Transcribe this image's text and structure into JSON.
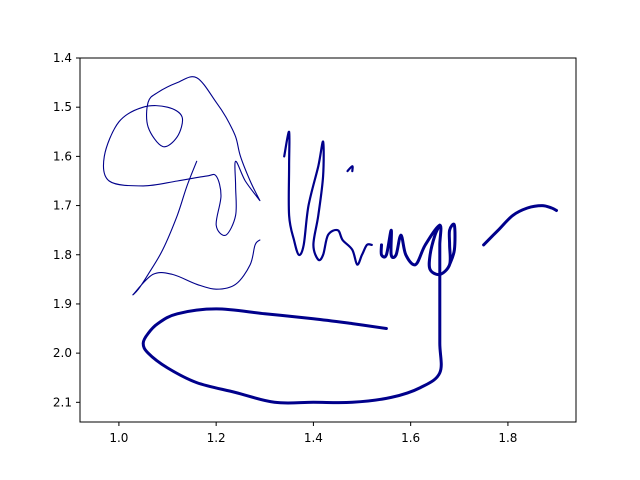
{
  "chart_data": {
    "type": "line",
    "title": "",
    "xlabel": "",
    "ylabel": "",
    "xlim": [
      0.92,
      1.94
    ],
    "ylim": [
      2.14,
      1.4
    ],
    "y_inverted": true,
    "grid": false,
    "xticks": [
      "1.0",
      "1.2",
      "1.4",
      "1.6",
      "1.8"
    ],
    "xtick_values": [
      1.0,
      1.2,
      1.4,
      1.6,
      1.8
    ],
    "yticks": [
      "1.4",
      "1.5",
      "1.6",
      "1.7",
      "1.8",
      "1.9",
      "2.0",
      "2.1"
    ],
    "ytick_values": [
      1.4,
      1.5,
      1.6,
      1.7,
      1.8,
      1.9,
      2.0,
      2.1
    ],
    "color": "#00008b",
    "series": [
      {
        "stroke": "thin",
        "points": [
          [
            1.29,
            1.69
          ],
          [
            1.27,
            1.65
          ],
          [
            1.25,
            1.6
          ],
          [
            1.24,
            1.56
          ],
          [
            1.22,
            1.52
          ],
          [
            1.2,
            1.49
          ],
          [
            1.16,
            1.44
          ],
          [
            1.12,
            1.45
          ],
          [
            1.08,
            1.47
          ],
          [
            1.06,
            1.49
          ],
          [
            1.06,
            1.54
          ],
          [
            1.09,
            1.58
          ],
          [
            1.12,
            1.56
          ],
          [
            1.13,
            1.52
          ],
          [
            1.1,
            1.5
          ],
          [
            1.05,
            1.5
          ],
          [
            1.0,
            1.53
          ],
          [
            0.97,
            1.6
          ],
          [
            0.98,
            1.65
          ],
          [
            1.05,
            1.66
          ],
          [
            1.12,
            1.65
          ],
          [
            1.18,
            1.64
          ],
          [
            1.2,
            1.64
          ],
          [
            1.21,
            1.68
          ],
          [
            1.2,
            1.74
          ],
          [
            1.22,
            1.76
          ],
          [
            1.24,
            1.72
          ],
          [
            1.24,
            1.66
          ],
          [
            1.24,
            1.61
          ],
          [
            1.26,
            1.65
          ],
          [
            1.29,
            1.69
          ]
        ]
      },
      {
        "stroke": "thin",
        "points": [
          [
            1.16,
            1.61
          ],
          [
            1.14,
            1.66
          ],
          [
            1.12,
            1.72
          ],
          [
            1.09,
            1.79
          ],
          [
            1.06,
            1.84
          ],
          [
            1.04,
            1.87
          ],
          [
            1.03,
            1.88
          ],
          [
            1.07,
            1.84
          ],
          [
            1.11,
            1.84
          ],
          [
            1.16,
            1.86
          ],
          [
            1.2,
            1.87
          ],
          [
            1.24,
            1.86
          ],
          [
            1.27,
            1.82
          ],
          [
            1.28,
            1.78
          ],
          [
            1.29,
            1.77
          ]
        ]
      },
      {
        "stroke": "medium",
        "points": [
          [
            1.34,
            1.6
          ],
          [
            1.35,
            1.55
          ],
          [
            1.35,
            1.62
          ],
          [
            1.35,
            1.72
          ],
          [
            1.36,
            1.77
          ],
          [
            1.37,
            1.8
          ],
          [
            1.38,
            1.78
          ],
          [
            1.39,
            1.7
          ],
          [
            1.41,
            1.62
          ],
          [
            1.42,
            1.57
          ],
          [
            1.42,
            1.64
          ],
          [
            1.41,
            1.72
          ],
          [
            1.4,
            1.78
          ],
          [
            1.41,
            1.81
          ],
          [
            1.42,
            1.8
          ],
          [
            1.43,
            1.76
          ],
          [
            1.45,
            1.75
          ],
          [
            1.46,
            1.77
          ],
          [
            1.48,
            1.79
          ],
          [
            1.49,
            1.82
          ],
          [
            1.5,
            1.8
          ],
          [
            1.51,
            1.78
          ],
          [
            1.52,
            1.78
          ]
        ]
      },
      {
        "stroke": "medium",
        "points": [
          [
            1.47,
            1.63
          ],
          [
            1.48,
            1.62
          ],
          [
            1.48,
            1.63
          ]
        ]
      },
      {
        "stroke": "thick",
        "points": [
          [
            1.55,
            1.95
          ],
          [
            1.48,
            1.94
          ],
          [
            1.4,
            1.93
          ],
          [
            1.3,
            1.92
          ],
          [
            1.2,
            1.91
          ],
          [
            1.12,
            1.92
          ],
          [
            1.08,
            1.94
          ],
          [
            1.06,
            1.96
          ],
          [
            1.05,
            1.98
          ],
          [
            1.06,
            2.0
          ],
          [
            1.1,
            2.03
          ],
          [
            1.16,
            2.06
          ],
          [
            1.24,
            2.08
          ],
          [
            1.32,
            2.1
          ],
          [
            1.4,
            2.1
          ],
          [
            1.48,
            2.1
          ],
          [
            1.56,
            2.09
          ],
          [
            1.62,
            2.07
          ],
          [
            1.66,
            2.04
          ],
          [
            1.66,
            1.98
          ],
          [
            1.66,
            1.9
          ],
          [
            1.66,
            1.83
          ],
          [
            1.66,
            1.78
          ],
          [
            1.66,
            1.74
          ],
          [
            1.63,
            1.78
          ],
          [
            1.61,
            1.82
          ],
          [
            1.59,
            1.8
          ],
          [
            1.58,
            1.76
          ],
          [
            1.57,
            1.8
          ],
          [
            1.56,
            1.8
          ],
          [
            1.56,
            1.75
          ],
          [
            1.55,
            1.8
          ],
          [
            1.54,
            1.8
          ],
          [
            1.54,
            1.78
          ]
        ]
      },
      {
        "stroke": "thick",
        "points": [
          [
            1.66,
            1.74
          ],
          [
            1.65,
            1.76
          ],
          [
            1.64,
            1.8
          ],
          [
            1.64,
            1.83
          ],
          [
            1.66,
            1.84
          ],
          [
            1.68,
            1.82
          ],
          [
            1.68,
            1.78
          ],
          [
            1.68,
            1.75
          ],
          [
            1.69,
            1.74
          ],
          [
            1.69,
            1.79
          ],
          [
            1.68,
            1.82
          ]
        ]
      },
      {
        "stroke": "thick",
        "points": [
          [
            1.75,
            1.78
          ],
          [
            1.78,
            1.75
          ],
          [
            1.81,
            1.72
          ],
          [
            1.84,
            1.705
          ],
          [
            1.87,
            1.7
          ],
          [
            1.89,
            1.705
          ],
          [
            1.9,
            1.71
          ]
        ]
      }
    ]
  }
}
